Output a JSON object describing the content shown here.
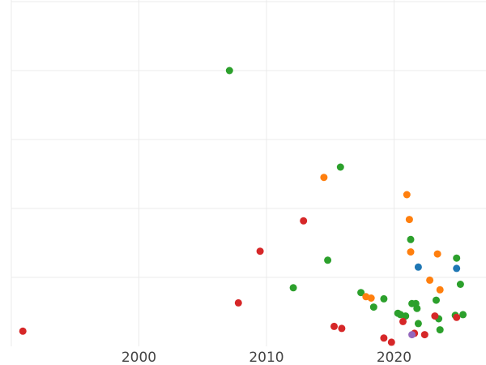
{
  "chart_data": {
    "type": "scatter",
    "title": "",
    "xlabel": "",
    "ylabel": "",
    "xlim": [
      1990,
      2027
    ],
    "ylim": [
      0,
      5
    ],
    "x_ticks": [
      2000,
      2010,
      2020
    ],
    "x_tick_labels": [
      "2000",
      "2010",
      "2020"
    ],
    "y_gridlines": [
      1,
      2,
      3,
      4,
      5
    ],
    "grid": true,
    "legend": "none",
    "colors": {
      "green": "#2ca02c",
      "orange": "#ff7f0e",
      "red": "#d62728",
      "blue": "#1f77b4",
      "purple": "#9467bd"
    },
    "series": [
      {
        "color": "#2ca02c",
        "points": [
          [
            2007.1,
            4.0
          ],
          [
            2015.8,
            2.6
          ],
          [
            2012.1,
            0.85
          ],
          [
            2014.8,
            1.25
          ],
          [
            2017.4,
            0.78
          ],
          [
            2018.4,
            0.57
          ],
          [
            2019.2,
            0.69
          ],
          [
            2020.3,
            0.48
          ],
          [
            2020.5,
            0.46
          ],
          [
            2020.9,
            0.44
          ],
          [
            2021.3,
            1.55
          ],
          [
            2021.4,
            0.62
          ],
          [
            2021.7,
            0.62
          ],
          [
            2021.8,
            0.55
          ],
          [
            2021.9,
            0.33
          ],
          [
            2023.5,
            0.4
          ],
          [
            2023.3,
            0.67
          ],
          [
            2023.6,
            0.24
          ],
          [
            2024.8,
            0.45
          ],
          [
            2024.9,
            1.28
          ],
          [
            2025.2,
            0.9
          ],
          [
            2025.4,
            0.46
          ]
        ]
      },
      {
        "color": "#ff7f0e",
        "points": [
          [
            2014.5,
            2.45
          ],
          [
            2021.0,
            2.2
          ],
          [
            2021.2,
            1.84
          ],
          [
            2021.3,
            1.37
          ],
          [
            2023.4,
            1.34
          ],
          [
            2022.8,
            0.96
          ],
          [
            2023.6,
            0.82
          ],
          [
            2017.8,
            0.72
          ],
          [
            2018.2,
            0.7
          ]
        ]
      },
      {
        "color": "#d62728",
        "points": [
          [
            1990.9,
            0.22
          ],
          [
            2007.8,
            0.63
          ],
          [
            2009.5,
            1.38
          ],
          [
            2012.9,
            1.82
          ],
          [
            2015.3,
            0.29
          ],
          [
            2015.9,
            0.26
          ],
          [
            2019.2,
            0.12
          ],
          [
            2019.8,
            0.06
          ],
          [
            2020.7,
            0.36
          ],
          [
            2021.6,
            0.19
          ],
          [
            2022.4,
            0.17
          ],
          [
            2023.2,
            0.44
          ],
          [
            2024.9,
            0.42
          ]
        ]
      },
      {
        "color": "#1f77b4",
        "points": [
          [
            2021.9,
            1.15
          ],
          [
            2024.9,
            1.13
          ]
        ]
      },
      {
        "color": "#9467bd",
        "points": [
          [
            2021.4,
            0.17
          ]
        ]
      }
    ]
  }
}
